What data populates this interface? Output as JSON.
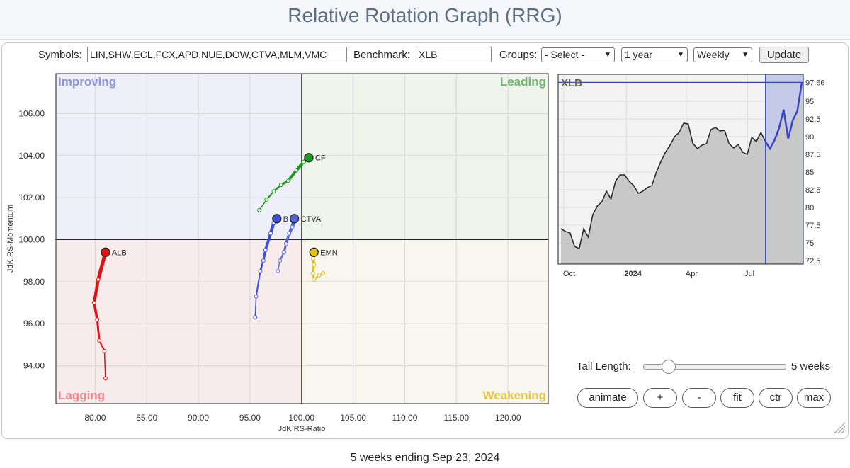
{
  "page": {
    "title": "Relative Rotation Graph (RRG)"
  },
  "controls": {
    "symbols_label": "Symbols:",
    "symbols_value": "LIN,SHW,ECL,FCX,APD,NUE,DOW,CTVA,MLM,VMC",
    "benchmark_label": "Benchmark:",
    "benchmark_value": "XLB",
    "groups_label": "Groups:",
    "groups_value": "- Select -",
    "period_value": "1 year",
    "frequency_value": "Weekly",
    "update_label": "Update"
  },
  "rrg": {
    "quadrants": {
      "improving": "Improving",
      "leading": "Leading",
      "lagging": "Lagging",
      "weakening": "Weakening"
    },
    "colors": {
      "improving_bg": "#eeeff8",
      "leading_bg": "#eef4ec",
      "lagging_bg": "#f8ebec",
      "weakening_bg": "#f8f6ee",
      "improving_text": "#8d95d6",
      "leading_text": "#6fb86f",
      "lagging_text": "#ef8a8a",
      "weakening_text": "#e9c542"
    },
    "x_label": "JdK RS-Ratio",
    "y_label": "JdK RS-Momentum",
    "x_ticks": [
      "80.00",
      "85.00",
      "90.00",
      "95.00",
      "100.00",
      "105.00",
      "110.00",
      "115.00",
      "120.00"
    ],
    "y_ticks": [
      "106.00",
      "104.00",
      "102.00",
      "100.00",
      "98.00",
      "96.00",
      "94.00"
    ]
  },
  "chart_data": [
    {
      "type": "scatter",
      "x_label": "JdK RS-Ratio",
      "y_label": "JdK RS-Momentum",
      "xlim": [
        76.2,
        123.9
      ],
      "ylim": [
        92.2,
        107.9
      ],
      "center": [
        100,
        100
      ],
      "series": [
        {
          "name": "ALB",
          "color": "#e41010",
          "points": [
            [
              81.0,
              93.4
            ],
            [
              80.9,
              94.7
            ],
            [
              80.4,
              95.2
            ],
            [
              80.2,
              96.2
            ],
            [
              79.9,
              97.0
            ],
            [
              80.3,
              98.1
            ],
            [
              81.0,
              99.4
            ]
          ]
        },
        {
          "name": "CF",
          "color": "#1a9a1a",
          "points": [
            [
              95.9,
              101.4
            ],
            [
              96.6,
              101.9
            ],
            [
              97.3,
              102.3
            ],
            [
              98.0,
              102.6
            ],
            [
              98.7,
              102.8
            ],
            [
              99.5,
              103.3
            ],
            [
              100.2,
              103.7
            ],
            [
              100.7,
              103.9
            ]
          ]
        },
        {
          "name": "EMN",
          "color": "#e6be14",
          "points": [
            [
              102.1,
              98.4
            ],
            [
              101.7,
              98.3
            ],
            [
              101.2,
              98.1
            ],
            [
              101.1,
              98.4
            ],
            [
              101.2,
              98.8
            ],
            [
              101.1,
              99.1
            ],
            [
              101.2,
              99.4
            ]
          ]
        },
        {
          "name": "CTVA",
          "color": "#5566dd",
          "points": [
            [
              97.7,
              98.5
            ],
            [
              97.9,
              99.0
            ],
            [
              98.3,
              99.4
            ],
            [
              98.5,
              99.8
            ],
            [
              98.8,
              100.3
            ],
            [
              99.1,
              100.6
            ],
            [
              99.3,
              101.0
            ]
          ]
        },
        {
          "name": "B",
          "color": "#3a4fdc",
          "points": [
            [
              95.5,
              96.3
            ],
            [
              95.6,
              97.3
            ],
            [
              96.0,
              98.5
            ],
            [
              96.3,
              99.0
            ],
            [
              96.5,
              99.5
            ],
            [
              97.0,
              100.3
            ],
            [
              97.3,
              100.8
            ],
            [
              97.6,
              101.0
            ]
          ]
        }
      ]
    },
    {
      "type": "area",
      "series_label": "XLB",
      "color": "#3445c8",
      "fill": "#c8c8c8",
      "x_ticks": [
        "Oct",
        "2024",
        "Apr",
        "Jul"
      ],
      "y_ticks": [
        "97.66",
        "95",
        "92.5",
        "90",
        "87.5",
        "85",
        "82.5",
        "80",
        "77.5",
        "75",
        "72.5"
      ],
      "ylim": [
        72.0,
        98.8
      ],
      "tail_start_index": 45,
      "values": [
        77.0,
        76.6,
        76.4,
        74.5,
        74.2,
        77.0,
        75.8,
        79.0,
        80.2,
        80.8,
        82.3,
        81.2,
        83.7,
        84.6,
        84.6,
        83.7,
        83.1,
        82.0,
        82.3,
        82.8,
        83.1,
        85.0,
        86.5,
        87.8,
        88.8,
        90.0,
        90.6,
        91.9,
        91.8,
        89.1,
        88.3,
        88.8,
        89.0,
        91.0,
        91.3,
        90.8,
        90.9,
        89.0,
        88.4,
        88.9,
        87.8,
        87.5,
        89.9,
        89.3,
        90.6,
        89.3,
        88.3,
        89.5,
        91.2,
        93.8,
        89.7,
        92.3,
        93.6,
        97.66
      ],
      "last_value": "97.66"
    }
  ],
  "tail": {
    "label": "Tail Length:",
    "value": "5 weeks",
    "fraction": 0.17
  },
  "buttons": {
    "animate": "animate",
    "plus": "+",
    "minus": "-",
    "fit": "fit",
    "ctr": "ctr",
    "max": "max"
  },
  "footer": {
    "text": "5 weeks ending Sep 23, 2024"
  }
}
